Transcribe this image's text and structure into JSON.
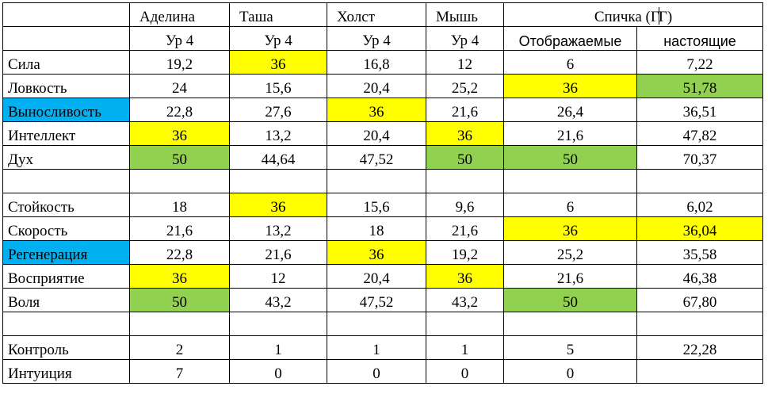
{
  "colors": {
    "yellow": "#ffff00",
    "green": "#92d050",
    "blue": "#00b0f0"
  },
  "header": {
    "adelina": "Аделина",
    "tasha": "Таша",
    "kholst": "Холст",
    "mysh": "Мышь",
    "spichka_a": "Спичка (Г",
    "spichka_b": "Г)"
  },
  "subheader": {
    "adelina": "Ур 4",
    "tasha": "Ур 4",
    "kholst": "Ур 4",
    "mysh": "Ур 4",
    "displayed": "Отображаемые",
    "real": "настоящие"
  },
  "rows": [
    {
      "label": "Сила",
      "adelina": "19,2",
      "tasha": "36",
      "kholst": "16,8",
      "mysh": "12",
      "displayed": "6",
      "real": "7,22"
    },
    {
      "label": "Ловкость",
      "adelina": "24",
      "tasha": "15,6",
      "kholst": "20,4",
      "mysh": "25,2",
      "displayed": "36",
      "real": "51,78"
    },
    {
      "label": "Выносливость",
      "adelina": "22,8",
      "tasha": "27,6",
      "kholst": "36",
      "mysh": "21,6",
      "displayed": "26,4",
      "real": "36,51"
    },
    {
      "label": "Интеллект",
      "adelina": "36",
      "tasha": "13,2",
      "kholst": "20,4",
      "mysh": "36",
      "displayed": "21,6",
      "real": "47,82"
    },
    {
      "label": "Дух",
      "adelina": "50",
      "tasha": "44,64",
      "kholst": "47,52",
      "mysh": "50",
      "displayed": "50",
      "real": "70,37"
    },
    {
      "label": "Стойкость",
      "adelina": "18",
      "tasha": "36",
      "kholst": "15,6",
      "mysh": "9,6",
      "displayed": "6",
      "real": "6,02"
    },
    {
      "label": "Скорость",
      "adelina": "21,6",
      "tasha": "13,2",
      "kholst": "18",
      "mysh": "21,6",
      "displayed": "36",
      "real": "36,04"
    },
    {
      "label": "Регенерация",
      "adelina": "22,8",
      "tasha": "21,6",
      "kholst": "36",
      "mysh": "19,2",
      "displayed": "25,2",
      "real": "35,58"
    },
    {
      "label": "Восприятие",
      "adelina": "36",
      "tasha": "12",
      "kholst": "20,4",
      "mysh": "36",
      "displayed": "21,6",
      "real": "46,38"
    },
    {
      "label": "Воля",
      "adelina": "50",
      "tasha": "43,2",
      "kholst": "47,52",
      "mysh": "43,2",
      "displayed": "50",
      "real": "67,80"
    },
    {
      "label": "Контроль",
      "adelina": "2",
      "tasha": "1",
      "kholst": "1",
      "mysh": "1",
      "displayed": "5",
      "real": "22,28"
    },
    {
      "label": "Интуиция",
      "adelina": "7",
      "tasha": "0",
      "kholst": "0",
      "mysh": "0",
      "displayed": "0",
      "real": ""
    }
  ]
}
